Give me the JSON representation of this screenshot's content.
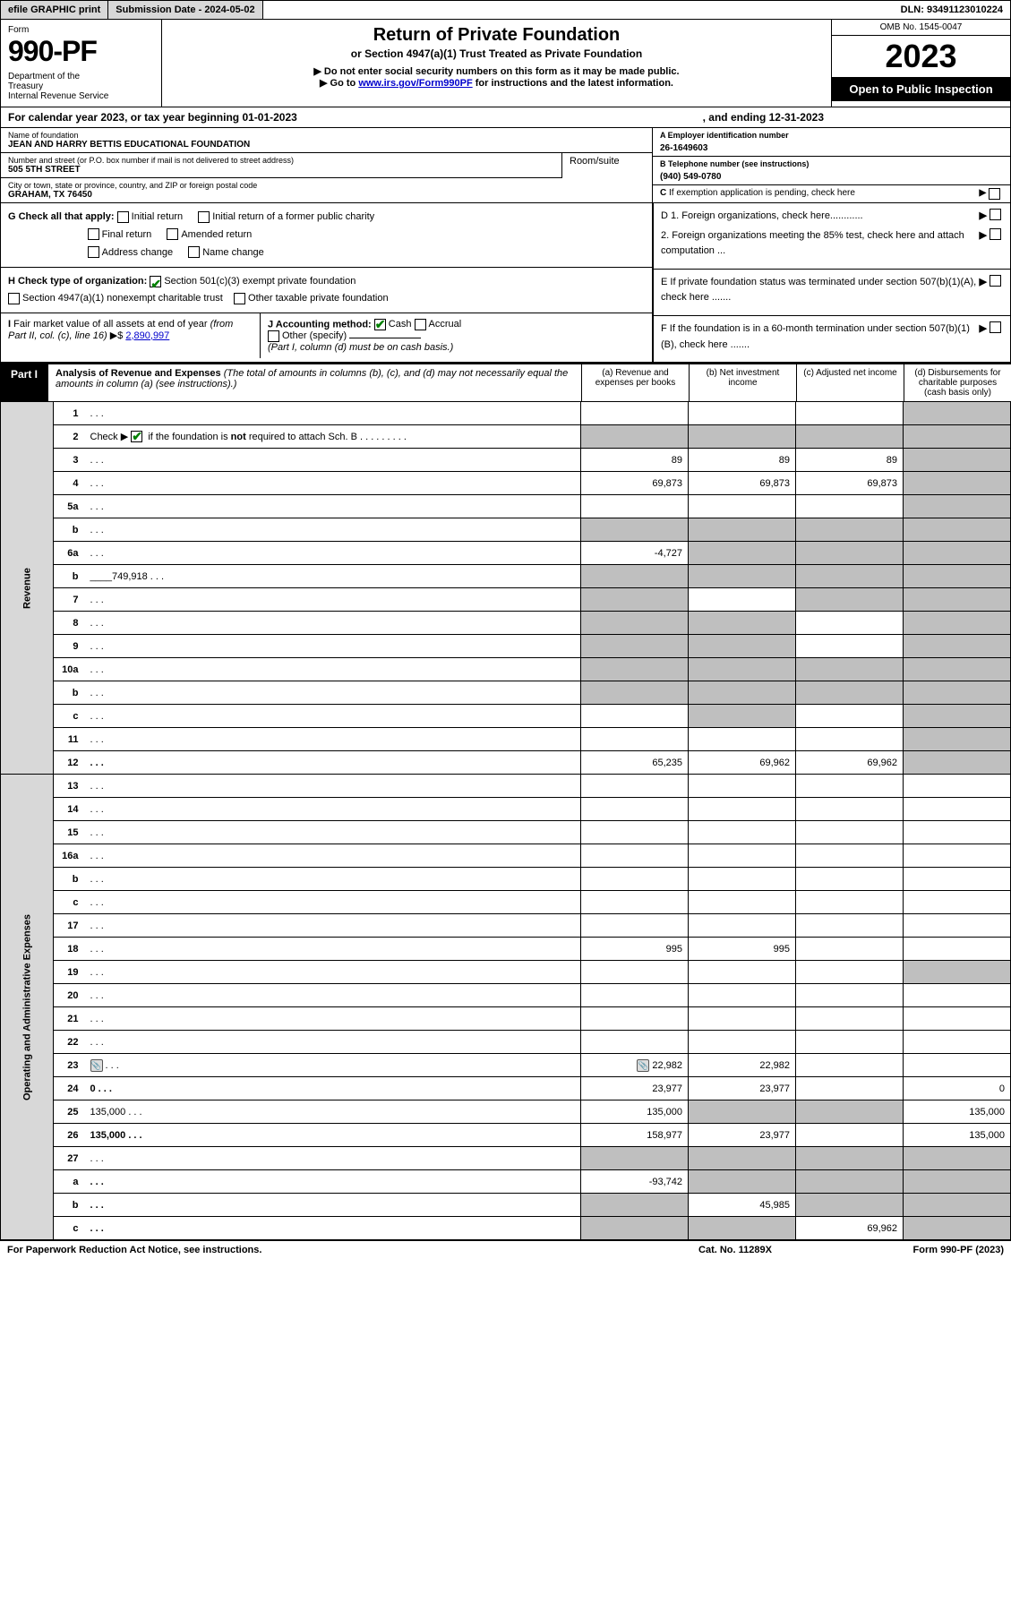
{
  "top_bar": {
    "efile": "efile GRAPHIC print",
    "sub_date_label": "Submission Date - 2024-05-02",
    "dln": "DLN: 93491123010224"
  },
  "header": {
    "form_word": "Form",
    "form_no": "990-PF",
    "dept": "Department of the Treasury\nInternal Revenue Service",
    "title": "Return of Private Foundation",
    "sub1": "or Section 4947(a)(1) Trust Treated as Private Foundation",
    "sub2": "▶ Do not enter social security numbers on this form as it may be made public.",
    "sub3_pre": "▶ Go to ",
    "sub3_link": "www.irs.gov/Form990PF",
    "sub3_post": " for instructions and the latest information.",
    "omb": "OMB No. 1545-0047",
    "year": "2023",
    "open": "Open to Public Inspection"
  },
  "cal_year": {
    "left": "For calendar year 2023, or tax year beginning 01-01-2023",
    "right": ", and ending 12-31-2023"
  },
  "info": {
    "name_lbl": "Name of foundation",
    "name_val": "JEAN AND HARRY BETTIS EDUCATIONAL FOUNDATION",
    "addr_lbl": "Number and street (or P.O. box number if mail is not delivered to street address)",
    "addr_val": "505 5TH STREET",
    "room_lbl": "Room/suite",
    "room_val": "",
    "city_lbl": "City or town, state or province, country, and ZIP or foreign postal code",
    "city_val": "GRAHAM, TX  76450",
    "ein_lbl": "A Employer identification number",
    "ein_val": "26-1649603",
    "tel_lbl": "B Telephone number (see instructions)",
    "tel_val": "(940) 549-0780",
    "c_lbl": "C If exemption application is pending, check here",
    "d1": "D 1. Foreign organizations, check here............",
    "d2": "2. Foreign organizations meeting the 85% test, check here and attach computation ...",
    "e": "E  If private foundation status was terminated under section 507(b)(1)(A), check here .......",
    "f": "F  If the foundation is in a 60-month termination under section 507(b)(1)(B), check here ......."
  },
  "g": {
    "label": "G Check all that apply:",
    "opts": [
      "Initial return",
      "Final return",
      "Address change",
      "Initial return of a former public charity",
      "Amended return",
      "Name change"
    ]
  },
  "h": {
    "label": "H Check type of organization:",
    "opt1": "Section 501(c)(3) exempt private foundation",
    "opt2": "Section 4947(a)(1) nonexempt charitable trust",
    "opt3": "Other taxable private foundation"
  },
  "i": {
    "label": "I Fair market value of all assets at end of year (from Part II, col. (c), line 16)",
    "val": "2,890,997"
  },
  "j": {
    "label": "J Accounting method:",
    "cash": "Cash",
    "accrual": "Accrual",
    "other": "Other (specify)",
    "note": "(Part I, column (d) must be on cash basis.)"
  },
  "part1": {
    "tag": "Part I",
    "title": "Analysis of Revenue and Expenses",
    "note": "(The total of amounts in columns (b), (c), and (d) may not necessarily equal the amounts in column (a) (see instructions).)",
    "cols": [
      "(a)  Revenue and expenses per books",
      "(b)  Net investment income",
      "(c)  Adjusted net income",
      "(d)  Disbursements for charitable purposes (cash basis only)"
    ]
  },
  "side_labels": {
    "rev": "Revenue",
    "exp": "Operating and Administrative Expenses"
  },
  "rows": [
    {
      "n": "1",
      "d": "",
      "a": "",
      "b": "",
      "c": "",
      "grey_bcd": false,
      "grey_d": true
    },
    {
      "n": "2",
      "d": "",
      "a": "",
      "b": "",
      "c": "",
      "grey_all": true
    },
    {
      "n": "3",
      "d": "",
      "a": "89",
      "b": "89",
      "c": "89",
      "grey_d": true
    },
    {
      "n": "4",
      "d": "",
      "a": "69,873",
      "b": "69,873",
      "c": "69,873",
      "grey_d": true
    },
    {
      "n": "5a",
      "d": "",
      "a": "",
      "b": "",
      "c": "",
      "grey_d": true
    },
    {
      "n": "b",
      "d": "",
      "a": "",
      "b": "",
      "c": "",
      "grey_all": true,
      "inline": true
    },
    {
      "n": "6a",
      "d": "",
      "a": "-4,727",
      "b": "",
      "c": "",
      "grey_bcd": true
    },
    {
      "n": "b",
      "d": "",
      "a": "",
      "b": "",
      "c": "",
      "grey_all": true,
      "inline_val": "749,918"
    },
    {
      "n": "7",
      "d": "",
      "a": "",
      "b": "",
      "c": "",
      "grey_a": true,
      "grey_cd": true
    },
    {
      "n": "8",
      "d": "",
      "a": "",
      "b": "",
      "c": "",
      "grey_ab": true,
      "grey_d": true
    },
    {
      "n": "9",
      "d": "",
      "a": "",
      "b": "",
      "c": "",
      "grey_ab": true,
      "grey_d": true
    },
    {
      "n": "10a",
      "d": "",
      "a": "",
      "b": "",
      "c": "",
      "grey_all": true,
      "inline": true
    },
    {
      "n": "b",
      "d": "",
      "a": "",
      "b": "",
      "c": "",
      "grey_all": true,
      "inline": true
    },
    {
      "n": "c",
      "d": "",
      "a": "",
      "b": "",
      "c": "",
      "grey_b": true,
      "grey_d": true
    },
    {
      "n": "11",
      "d": "",
      "a": "",
      "b": "",
      "c": "",
      "grey_d": true
    },
    {
      "n": "12",
      "d": "",
      "a": "65,235",
      "b": "69,962",
      "c": "69,962",
      "bold": true,
      "grey_d": true
    },
    {
      "n": "13",
      "d": "",
      "a": "",
      "b": "",
      "c": ""
    },
    {
      "n": "14",
      "d": "",
      "a": "",
      "b": "",
      "c": ""
    },
    {
      "n": "15",
      "d": "",
      "a": "",
      "b": "",
      "c": ""
    },
    {
      "n": "16a",
      "d": "",
      "a": "",
      "b": "",
      "c": ""
    },
    {
      "n": "b",
      "d": "",
      "a": "",
      "b": "",
      "c": ""
    },
    {
      "n": "c",
      "d": "",
      "a": "",
      "b": "",
      "c": ""
    },
    {
      "n": "17",
      "d": "",
      "a": "",
      "b": "",
      "c": ""
    },
    {
      "n": "18",
      "d": "",
      "a": "995",
      "b": "995",
      "c": ""
    },
    {
      "n": "19",
      "d": "",
      "a": "",
      "b": "",
      "c": "",
      "grey_d": true
    },
    {
      "n": "20",
      "d": "",
      "a": "",
      "b": "",
      "c": ""
    },
    {
      "n": "21",
      "d": "",
      "a": "",
      "b": "",
      "c": ""
    },
    {
      "n": "22",
      "d": "",
      "a": "",
      "b": "",
      "c": ""
    },
    {
      "n": "23",
      "d": "",
      "a": "22,982",
      "b": "22,982",
      "c": "",
      "has_icon": true
    },
    {
      "n": "24",
      "d": "0",
      "a": "23,977",
      "b": "23,977",
      "c": "",
      "bold": true
    },
    {
      "n": "25",
      "d": "135,000",
      "a": "135,000",
      "b": "",
      "c": "",
      "grey_bc": true
    },
    {
      "n": "26",
      "d": "135,000",
      "a": "158,977",
      "b": "23,977",
      "c": "",
      "bold": true
    },
    {
      "n": "27",
      "d": "",
      "a": "",
      "b": "",
      "c": "",
      "grey_all": true
    },
    {
      "n": "a",
      "d": "",
      "a": "-93,742",
      "b": "",
      "c": "",
      "bold": true,
      "grey_bcd": true
    },
    {
      "n": "b",
      "d": "",
      "a": "",
      "b": "45,985",
      "c": "",
      "bold": true,
      "grey_a": true,
      "grey_cd": true
    },
    {
      "n": "c",
      "d": "",
      "a": "",
      "b": "",
      "c": "69,962",
      "bold": true,
      "grey_ab": true,
      "grey_d": true
    }
  ],
  "footer": {
    "left": "For Paperwork Reduction Act Notice, see instructions.",
    "mid": "Cat. No. 11289X",
    "right": "Form 990-PF (2023)"
  },
  "colors": {
    "grey_bg": "#bfbfbf",
    "lt_grey": "#d8d8d8",
    "link": "#0000cc",
    "check": "#008000"
  }
}
